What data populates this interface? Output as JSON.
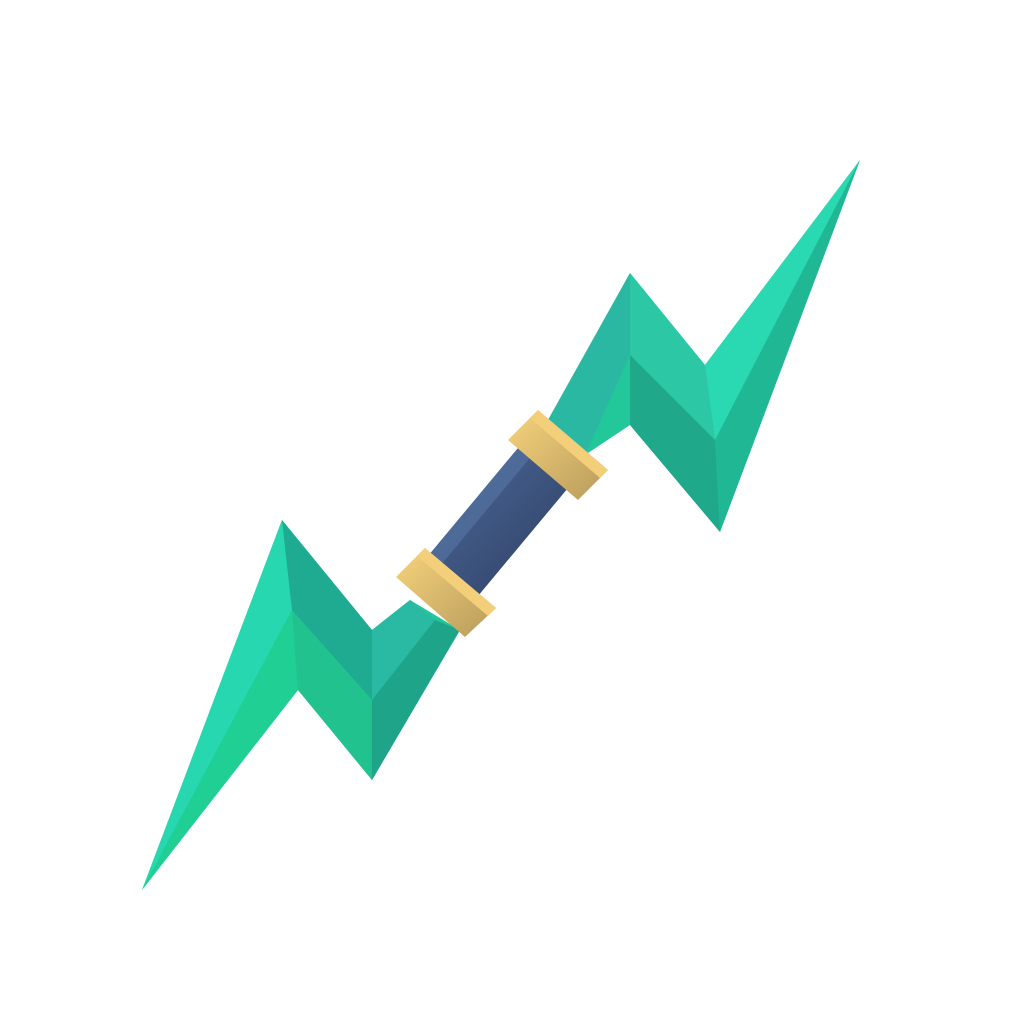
{
  "image": {
    "subject": "lightning-bolt-weapon-icon",
    "background_color": "#ffffff"
  },
  "colors": {
    "blade_light": "#2af2c8",
    "blade_mid": "#22c79a",
    "blade_dark": "#1ea489",
    "blade_teal": "#2bb8a2",
    "handle_light": "#4c6a9a",
    "handle_dark": "#2e3f63",
    "band_light": "#f6d37c",
    "band_dark": "#b89b5c"
  }
}
